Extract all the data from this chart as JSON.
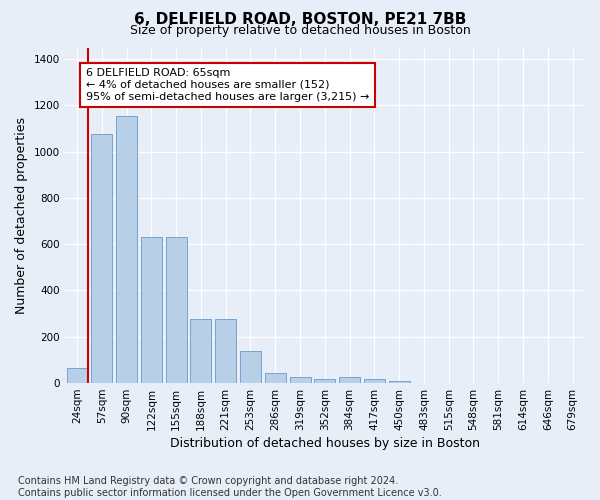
{
  "title": "6, DELFIELD ROAD, BOSTON, PE21 7BB",
  "subtitle": "Size of property relative to detached houses in Boston",
  "xlabel": "Distribution of detached houses by size in Boston",
  "ylabel": "Number of detached properties",
  "categories": [
    "24sqm",
    "57sqm",
    "90sqm",
    "122sqm",
    "155sqm",
    "188sqm",
    "221sqm",
    "253sqm",
    "286sqm",
    "319sqm",
    "352sqm",
    "384sqm",
    "417sqm",
    "450sqm",
    "483sqm",
    "515sqm",
    "548sqm",
    "581sqm",
    "614sqm",
    "646sqm",
    "679sqm"
  ],
  "values": [
    65,
    1075,
    1155,
    630,
    630,
    275,
    275,
    140,
    45,
    25,
    18,
    25,
    18,
    10,
    0,
    0,
    0,
    0,
    0,
    0,
    0
  ],
  "bar_color": "#b8cfe8",
  "bar_edge_color": "#6699cc",
  "vline_color": "#cc0000",
  "annotation_text": "6 DELFIELD ROAD: 65sqm\n← 4% of detached houses are smaller (152)\n95% of semi-detached houses are larger (3,215) →",
  "annotation_box_color": "#ffffff",
  "annotation_box_edge": "#cc0000",
  "ylim": [
    0,
    1450
  ],
  "yticks": [
    0,
    200,
    400,
    600,
    800,
    1000,
    1200,
    1400
  ],
  "background_color": "#e8eef7",
  "plot_background": "#e8eef7",
  "grid_color": "#ffffff",
  "title_fontsize": 11,
  "subtitle_fontsize": 9,
  "ylabel_fontsize": 9,
  "xlabel_fontsize": 9,
  "tick_fontsize": 7.5,
  "footnote": "Contains HM Land Registry data © Crown copyright and database right 2024.\nContains public sector information licensed under the Open Government Licence v3.0.",
  "footnote_fontsize": 7
}
